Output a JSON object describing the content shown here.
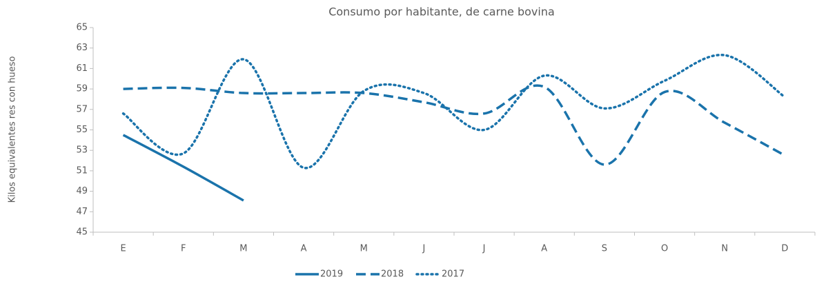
{
  "chart_data": {
    "type": "line",
    "title": "Consumo por habitante, de carne bovina",
    "y_label": "Kilos equivalentes res con hueso",
    "categories": [
      "E",
      "F",
      "M",
      "A",
      "M",
      "J",
      "J",
      "A",
      "S",
      "O",
      "N",
      "D"
    ],
    "series": [
      {
        "name": "2019",
        "color": "#1a73ab",
        "style": "solid",
        "values": [
          54.5,
          51.4,
          48.1,
          null,
          null,
          null,
          null,
          null,
          null,
          null,
          null,
          null
        ]
      },
      {
        "name": "2018",
        "color": "#1a73ab",
        "style": "dashed",
        "values": [
          59.0,
          59.1,
          58.6,
          58.6,
          58.6,
          57.7,
          56.6,
          59.2,
          51.6,
          58.7,
          55.7,
          52.5
        ]
      },
      {
        "name": "2017",
        "color": "#1a73ab",
        "style": "dotted",
        "values": [
          56.6,
          52.7,
          61.9,
          51.3,
          58.8,
          58.6,
          55.0,
          60.3,
          57.1,
          59.8,
          62.3,
          58.2
        ]
      }
    ],
    "ylim": [
      45,
      65
    ],
    "yticks": [
      45,
      47,
      49,
      51,
      53,
      55,
      57,
      59,
      61,
      63,
      65
    ],
    "legend": "bottom"
  }
}
